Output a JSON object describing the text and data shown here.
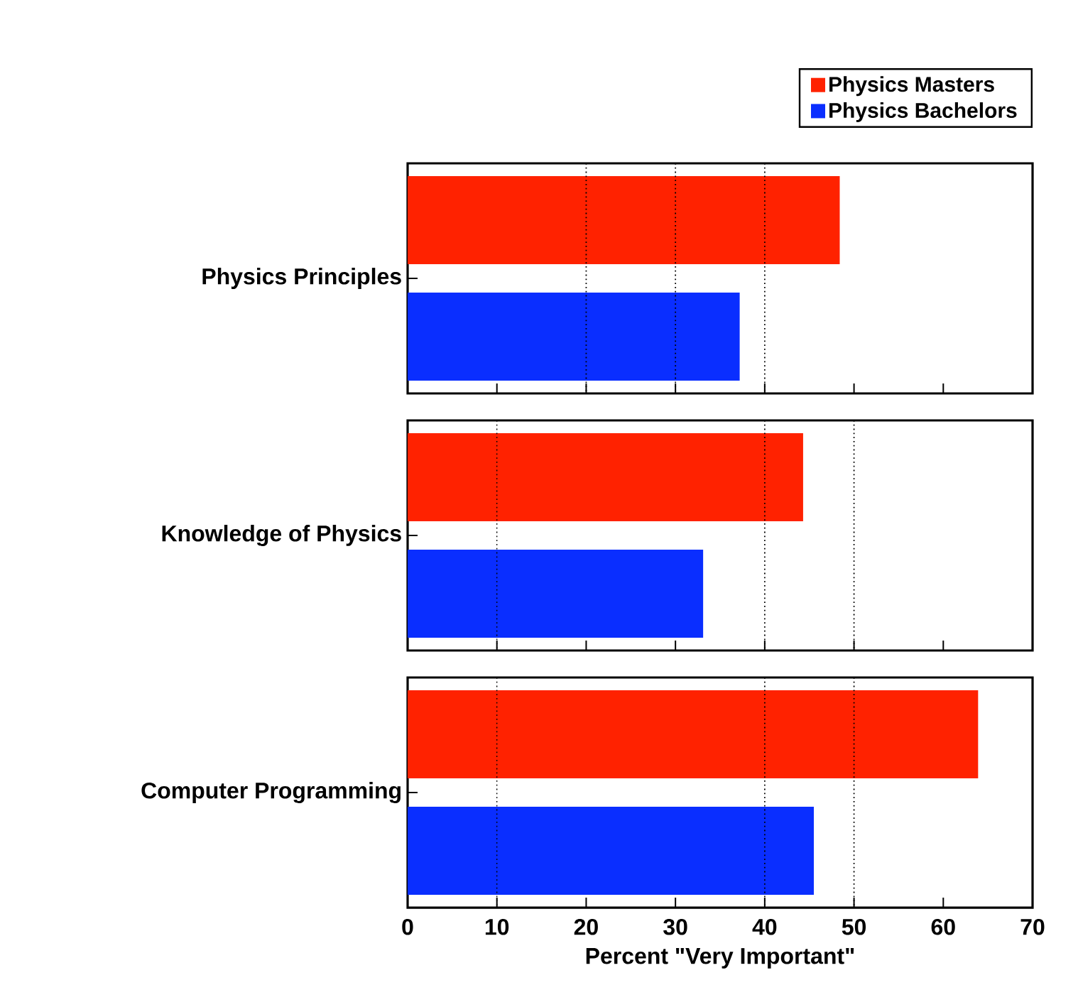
{
  "chart_data": [
    {
      "type": "bar",
      "orientation": "horizontal",
      "categories": [
        "Physics Principles"
      ],
      "series": [
        {
          "name": "Physics Masters",
          "color": "#ff2200",
          "values": [
            48.4
          ]
        },
        {
          "name": "Physics Bachelors",
          "color": "#0a2eff",
          "values": [
            37.2
          ]
        }
      ],
      "xlim": [
        0,
        70
      ],
      "xticks": [
        0,
        10,
        20,
        30,
        40,
        50,
        60,
        70
      ],
      "tick_labels": "y",
      "legend": "top right",
      "ref_lines": [
        {
          "axis": "x",
          "value": 20,
          "line_style": "dotted"
        },
        {
          "axis": "x",
          "value": 30,
          "line_style": "dotted"
        },
        {
          "axis": "x",
          "value": 40,
          "line_style": "dotted"
        }
      ]
    },
    {
      "type": "bar",
      "orientation": "horizontal",
      "categories": [
        "Knowledge of Physics"
      ],
      "series": [
        {
          "color": "#ff2200",
          "values": [
            44.3
          ]
        },
        {
          "color": "#0a2eff",
          "values": [
            33.1
          ]
        }
      ],
      "xlim": [
        0,
        70
      ],
      "xticks": [
        0,
        10,
        20,
        30,
        40,
        50,
        60,
        70
      ],
      "tick_labels": "y",
      "ref_lines": [
        {
          "axis": "x",
          "value": 10,
          "line_style": "dotted"
        },
        {
          "axis": "x",
          "value": 40,
          "line_style": "dotted"
        },
        {
          "axis": "x",
          "value": 50,
          "line_style": "dotted"
        }
      ]
    },
    {
      "type": "bar",
      "orientation": "horizontal",
      "categories": [
        "Computer Programming"
      ],
      "series": [
        {
          "color": "#ff2200",
          "values": [
            63.9
          ]
        },
        {
          "color": "#0a2eff",
          "values": [
            45.5
          ]
        }
      ],
      "xlim": [
        0,
        70
      ],
      "xticks": [
        0,
        10,
        20,
        30,
        40,
        50,
        60,
        70
      ],
      "xlabel": "Percent \"Very Important\"",
      "ref_lines": [
        {
          "axis": "x",
          "value": 10,
          "line_style": "dotted"
        },
        {
          "axis": "x",
          "value": 40,
          "line_style": "dotted"
        },
        {
          "axis": "x",
          "value": 50,
          "line_style": "dotted"
        }
      ]
    }
  ]
}
